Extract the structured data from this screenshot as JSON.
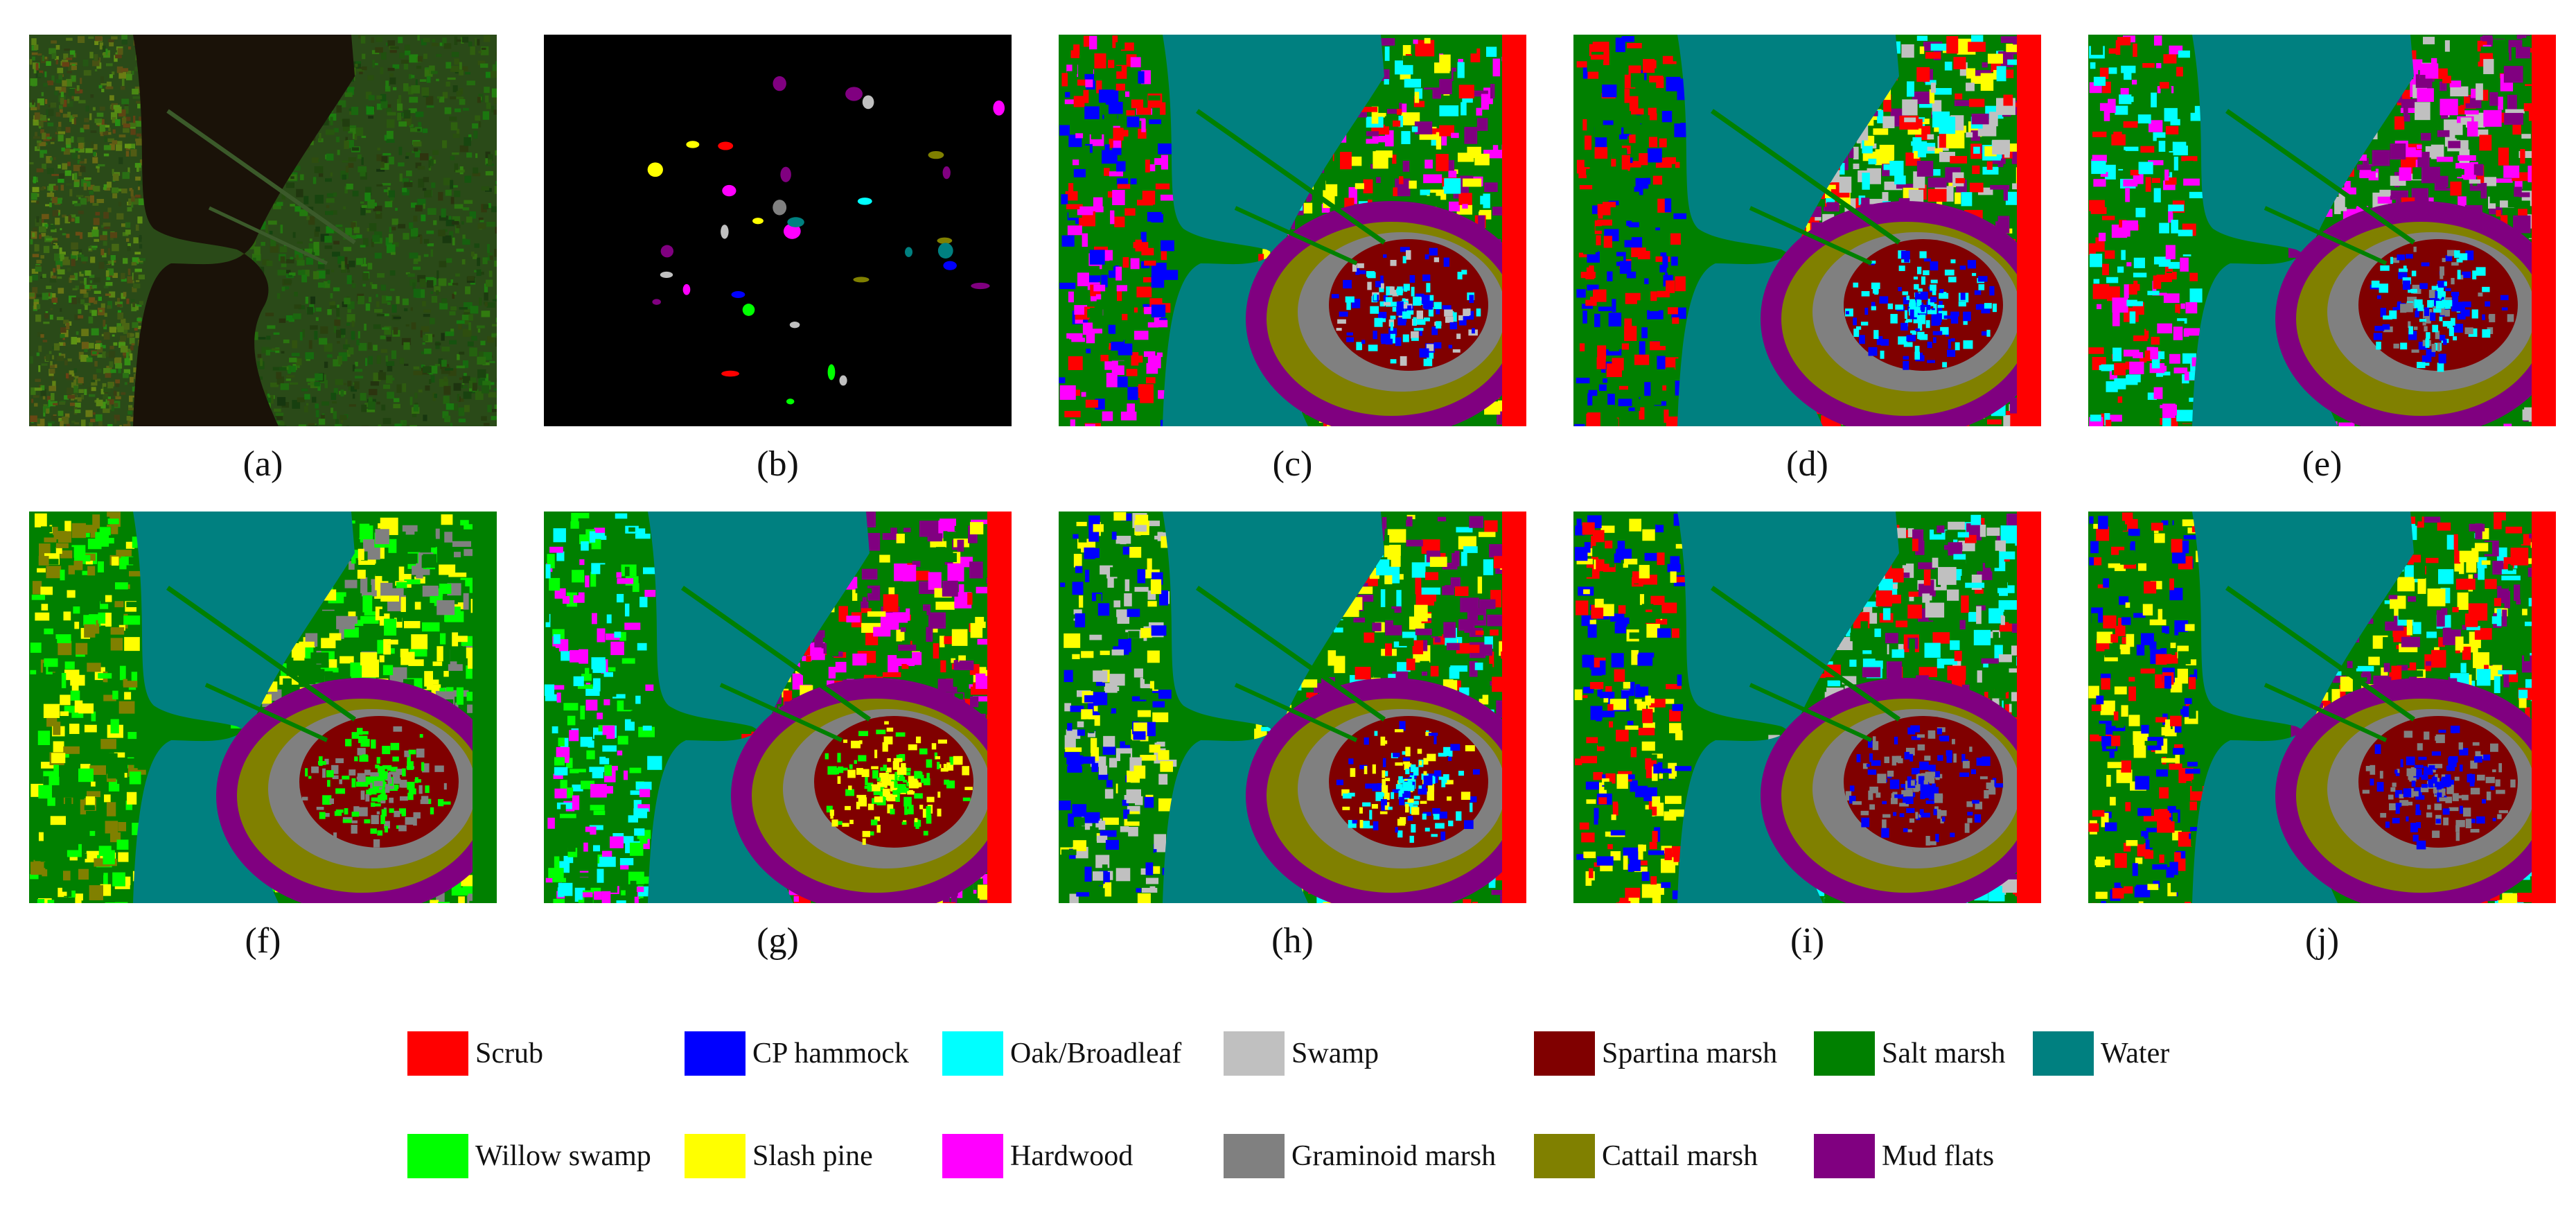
{
  "panels": [
    {
      "id": "a",
      "caption": "(a)",
      "kind": "rgb"
    },
    {
      "id": "b",
      "caption": "(b)",
      "kind": "ground-truth"
    },
    {
      "id": "c",
      "caption": "(c)",
      "kind": "map"
    },
    {
      "id": "d",
      "caption": "(d)",
      "kind": "map"
    },
    {
      "id": "e",
      "caption": "(e)",
      "kind": "map"
    },
    {
      "id": "f",
      "caption": "(f)",
      "kind": "map"
    },
    {
      "id": "g",
      "caption": "(g)",
      "kind": "map"
    },
    {
      "id": "h",
      "caption": "(h)",
      "kind": "map"
    },
    {
      "id": "i",
      "caption": "(i)",
      "kind": "map"
    },
    {
      "id": "j",
      "caption": "(j)",
      "kind": "map"
    }
  ],
  "legend": [
    {
      "label": "Scrub",
      "color": "#ff0000"
    },
    {
      "label": "CP hammock",
      "color": "#0000ff"
    },
    {
      "label": "Oak/Broadleaf",
      "color": "#00ffff"
    },
    {
      "label": "Swamp",
      "color": "#c0c0c0"
    },
    {
      "label": "Spartina marsh",
      "color": "#800000"
    },
    {
      "label": "Salt marsh",
      "color": "#008000"
    },
    {
      "label": "Water",
      "color": "#008080"
    },
    {
      "label": "Willow swamp",
      "color": "#00ff00"
    },
    {
      "label": "Slash pine",
      "color": "#ffff00"
    },
    {
      "label": "Hardwood",
      "color": "#ff00ff"
    },
    {
      "label": "Graminoid marsh",
      "color": "#808080"
    },
    {
      "label": "Cattail marsh",
      "color": "#808000"
    },
    {
      "label": "Mud flats",
      "color": "#800080"
    }
  ]
}
